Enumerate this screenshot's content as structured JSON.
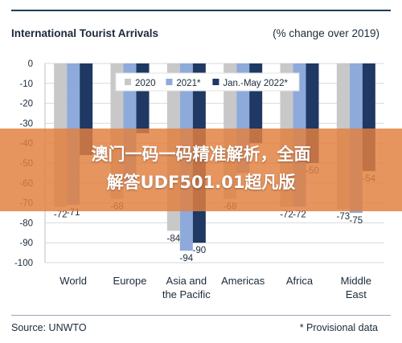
{
  "chart_data": {
    "type": "bar",
    "title": "International Tourist Arrivals",
    "subtitle": "(% change over 2019)",
    "categories": [
      "World",
      "Europe",
      "Asia and the Pacific",
      "Americas",
      "Africa",
      "Middle East"
    ],
    "category_lines": [
      [
        "World"
      ],
      [
        "Europe"
      ],
      [
        "Asia and",
        "the Pacific"
      ],
      [
        "Americas"
      ],
      [
        "Africa"
      ],
      [
        "Middle",
        "East"
      ]
    ],
    "series": [
      {
        "name": "2020",
        "values": [
          -72,
          -68,
          -84,
          -68,
          -72,
          -73
        ],
        "color": "#c8c8c8"
      },
      {
        "name": "2021*",
        "values": [
          -71,
          -60,
          -94,
          -55,
          -72,
          -75
        ],
        "color": "#8eaadb"
      },
      {
        "name": "Jan.-May 2022*",
        "values": [
          -46,
          -35,
          -90,
          -40,
          -50,
          -54
        ],
        "color": "#1f3864"
      }
    ],
    "data_labels": [
      [
        "-72",
        "-71",
        null
      ],
      [
        "-68",
        null,
        null
      ],
      [
        "-84",
        "-94",
        "-90"
      ],
      [
        "-68",
        null,
        null
      ],
      [
        "-72",
        "-72",
        "-50"
      ],
      [
        "-73",
        "-75",
        "-54"
      ]
    ],
    "yticks": [
      0,
      -10,
      -20,
      -30,
      -40,
      -50,
      -60,
      -70,
      -80,
      -90,
      -100
    ],
    "ylim": [
      -100,
      0
    ],
    "legend_position": "top-center",
    "grid": true
  },
  "source": "Source: UNWTO",
  "footnote": "* Provisional data",
  "banner": {
    "line1": "澳门一码一码精准解析，全面",
    "line2": "解答UDF501.01超凡版"
  }
}
